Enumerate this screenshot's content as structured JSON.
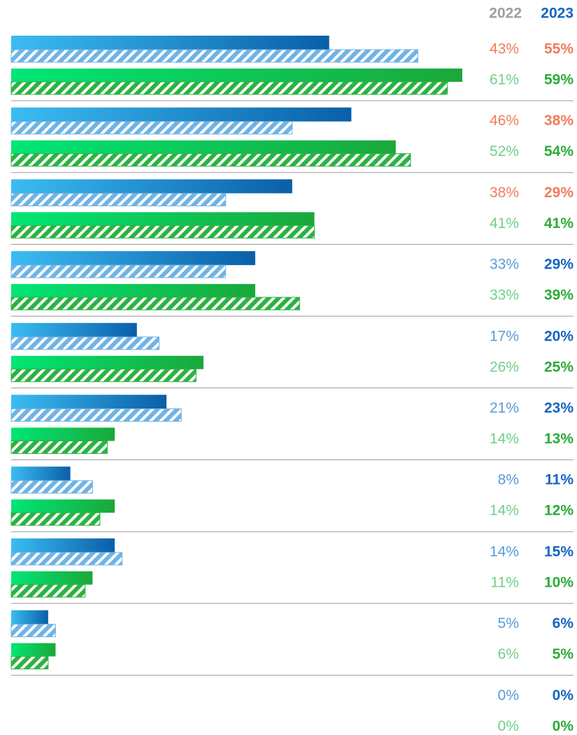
{
  "chart_data": {
    "type": "bar",
    "columns": [
      "2022",
      "2023"
    ],
    "column_colors": [
      "#9e9e9e",
      "#1565c0"
    ],
    "xlim": [
      0,
      61
    ],
    "highlight_color": "#f07c5a",
    "label_highlight": [
      true,
      true,
      true,
      false,
      false,
      false,
      false,
      false,
      false,
      false
    ],
    "series": [
      {
        "color": "#0a5fa8",
        "fill": "solid",
        "label_color": "#5b9bd5",
        "values": [
          43,
          46,
          38,
          33,
          17,
          21,
          8,
          14,
          5,
          0
        ],
        "value_labels": [
          "43%",
          "46%",
          "38%",
          "33%",
          "17%",
          "21%",
          "8%",
          "14%",
          "5%",
          "0%"
        ]
      },
      {
        "color": "#6fb3e6",
        "fill": "hatch",
        "label_color": "#1565c0",
        "values": [
          55,
          38,
          29,
          29,
          20,
          23,
          11,
          15,
          6,
          0
        ],
        "value_labels": [
          "55%",
          "38%",
          "29%",
          "29%",
          "20%",
          "23%",
          "11%",
          "15%",
          "6%",
          "0%"
        ]
      },
      {
        "color": "#1aa83a",
        "fill": "solid",
        "label_color": "#6fd08a",
        "values": [
          61,
          52,
          41,
          33,
          26,
          14,
          14,
          11,
          6,
          0
        ],
        "value_labels": [
          "61%",
          "52%",
          "41%",
          "33%",
          "26%",
          "14%",
          "14%",
          "11%",
          "6%",
          "0%"
        ]
      },
      {
        "color": "#2bb342",
        "fill": "hatch",
        "label_color": "#2bab3a",
        "values": [
          59,
          54,
          41,
          39,
          25,
          13,
          12,
          10,
          5,
          0
        ],
        "value_labels": [
          "59%",
          "54%",
          "41%",
          "39%",
          "25%",
          "13%",
          "12%",
          "10%",
          "5%",
          "0%"
        ]
      }
    ]
  }
}
